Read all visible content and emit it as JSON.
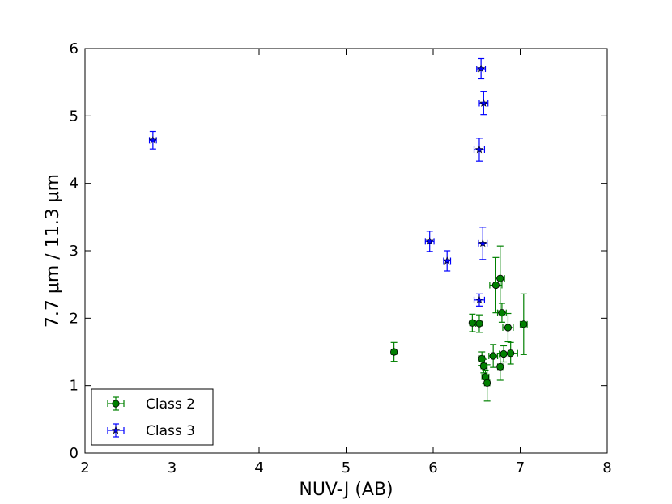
{
  "chart_data": {
    "type": "scatter",
    "xlabel": "NUV-J (AB)",
    "ylabel": "7.7 μm / 11.3 μm",
    "xlim": [
      2,
      8
    ],
    "ylim": [
      0,
      6
    ],
    "xticks": [
      "2",
      "3",
      "4",
      "5",
      "6",
      "7",
      "8"
    ],
    "yticks": [
      "0",
      "1",
      "2",
      "3",
      "4",
      "5",
      "6"
    ],
    "legend_position": "lower-left",
    "grid": false,
    "series": [
      {
        "name": "Class 2",
        "color": "#008000",
        "marker": "circle",
        "points": [
          {
            "x": 5.55,
            "y": 1.5,
            "xerr": 0.03,
            "yerr": 0.14
          },
          {
            "x": 6.45,
            "y": 1.93,
            "xerr": 0.03,
            "yerr": 0.13
          },
          {
            "x": 6.53,
            "y": 1.92,
            "xerr": 0.04,
            "yerr": 0.13
          },
          {
            "x": 6.56,
            "y": 1.4,
            "xerr": 0.03,
            "yerr": 0.1
          },
          {
            "x": 6.58,
            "y": 1.29,
            "xerr": 0.03,
            "yerr": 0.1
          },
          {
            "x": 6.6,
            "y": 1.13,
            "xerr": 0.04,
            "yerr": 0.1
          },
          {
            "x": 6.62,
            "y": 1.04,
            "xerr": 0.03,
            "yerr": 0.27
          },
          {
            "x": 6.69,
            "y": 1.44,
            "xerr": 0.05,
            "yerr": 0.17
          },
          {
            "x": 6.72,
            "y": 2.49,
            "xerr": 0.07,
            "yerr": 0.41
          },
          {
            "x": 6.77,
            "y": 2.59,
            "xerr": 0.05,
            "yerr": 0.48
          },
          {
            "x": 6.77,
            "y": 1.28,
            "xerr": 0.03,
            "yerr": 0.2
          },
          {
            "x": 6.79,
            "y": 2.08,
            "xerr": 0.05,
            "yerr": 0.14
          },
          {
            "x": 6.81,
            "y": 1.47,
            "xerr": 0.05,
            "yerr": 0.12
          },
          {
            "x": 6.86,
            "y": 1.86,
            "xerr": 0.06,
            "yerr": 0.21
          },
          {
            "x": 6.89,
            "y": 1.48,
            "xerr": 0.08,
            "yerr": 0.16
          },
          {
            "x": 7.04,
            "y": 1.91,
            "xerr": 0.04,
            "yerr": 0.45
          }
        ]
      },
      {
        "name": "Class 3",
        "color": "#0000ff",
        "marker": "star",
        "points": [
          {
            "x": 2.78,
            "y": 4.64,
            "xerr": 0.04,
            "yerr": 0.13
          },
          {
            "x": 5.96,
            "y": 3.14,
            "xerr": 0.05,
            "yerr": 0.15
          },
          {
            "x": 6.16,
            "y": 2.85,
            "xerr": 0.04,
            "yerr": 0.15
          },
          {
            "x": 6.53,
            "y": 2.27,
            "xerr": 0.06,
            "yerr": 0.09
          },
          {
            "x": 6.53,
            "y": 4.5,
            "xerr": 0.06,
            "yerr": 0.17
          },
          {
            "x": 6.55,
            "y": 5.7,
            "xerr": 0.05,
            "yerr": 0.15
          },
          {
            "x": 6.57,
            "y": 3.11,
            "xerr": 0.05,
            "yerr": 0.24
          },
          {
            "x": 6.58,
            "y": 5.19,
            "xerr": 0.05,
            "yerr": 0.17
          }
        ]
      }
    ]
  }
}
